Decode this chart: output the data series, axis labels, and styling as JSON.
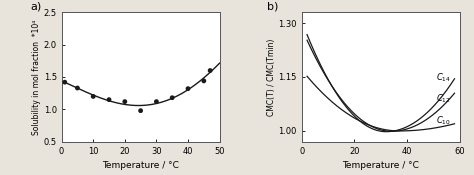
{
  "panel_a": {
    "label": "a)",
    "scatter_x": [
      1,
      5,
      10,
      15,
      20,
      25,
      30,
      35,
      40,
      45,
      47
    ],
    "scatter_y": [
      1.42,
      1.33,
      1.2,
      1.15,
      1.12,
      0.98,
      1.12,
      1.18,
      1.32,
      1.44,
      1.6
    ],
    "curve_x_min": 0,
    "curve_x_max": 50,
    "xlabel": "Temperature / °C",
    "ylabel": "Solubility in mol fraction  *10⁴",
    "xlim": [
      0,
      50
    ],
    "ylim": [
      0.5,
      2.5
    ],
    "yticks": [
      0.5,
      1.0,
      1.5,
      2.0,
      2.5
    ],
    "xticks": [
      0,
      10,
      20,
      30,
      40,
      50
    ]
  },
  "panel_b": {
    "label": "b)",
    "xlabel": "Temperature / °C",
    "ylabel": "CMC(T) / CMC(Tmin)",
    "xlim": [
      0,
      60
    ],
    "ylim": [
      0.97,
      1.33
    ],
    "yticks": [
      1.0,
      1.15,
      1.3
    ],
    "xticks": [
      0,
      20,
      40,
      60
    ],
    "curves": {
      "C14": {
        "tmin": 32,
        "ymin": 0.998,
        "y0": 1.305,
        "y60": 1.145,
        "label": "C_{14}"
      },
      "C12": {
        "tmin": 34,
        "ymin": 0.999,
        "y0": 1.285,
        "y60": 1.105,
        "label": "C_{12}"
      },
      "C10": {
        "tmin": 37,
        "ymin": 1.0,
        "y0": 1.17,
        "y60": 1.02,
        "label": "C_{10}"
      }
    },
    "label_positions": {
      "C14": [
        51,
        1.148
      ],
      "C12": [
        51,
        1.09
      ],
      "C10": [
        51,
        1.028
      ]
    }
  },
  "bg_color": "#ffffff",
  "fig_bg_color": "#e8e4dc",
  "line_color": "#1a1a1a",
  "marker_color": "#1a1a1a"
}
